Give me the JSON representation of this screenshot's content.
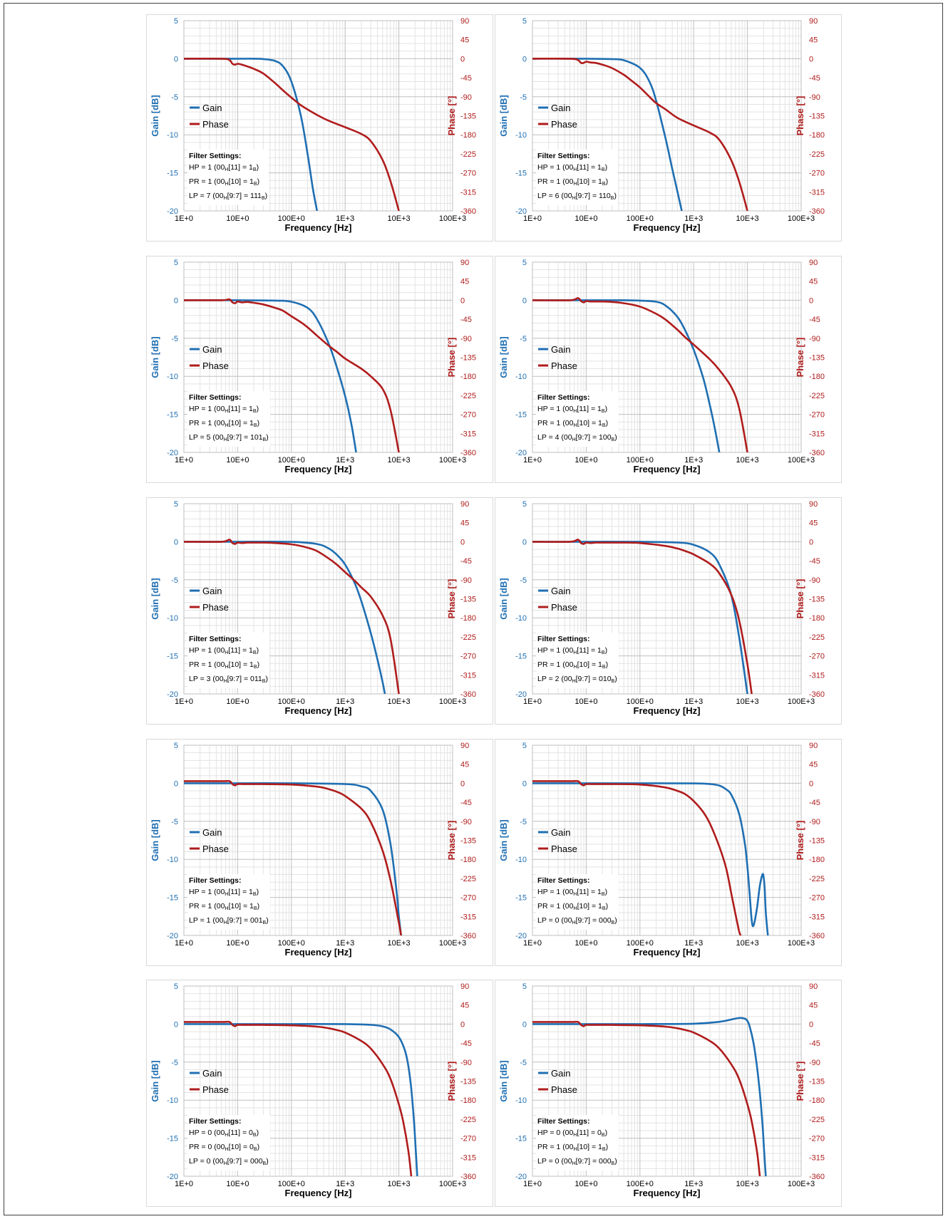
{
  "colors": {
    "gain": "#1f6fb2",
    "phase": "#b01c1c",
    "grid_major": "#bfbfbf",
    "grid_minor": "#e3e3e3"
  },
  "axes": {
    "xlabel": "Frequency [Hz]",
    "ylabel": "Gain [dB]",
    "y2label": "Phase [°]",
    "x_scale": "log",
    "xlim": [
      1,
      100000
    ],
    "x_ticks": [
      {
        "value": 1,
        "label": "1E+0"
      },
      {
        "value": 10,
        "label": "10E+0"
      },
      {
        "value": 100,
        "label": "100E+0"
      },
      {
        "value": 1000,
        "label": "1E+3"
      },
      {
        "value": 10000,
        "label": "10E+3"
      },
      {
        "value": 100000,
        "label": "100E+3"
      }
    ],
    "ylim": [
      -20,
      5
    ],
    "y_ticks": [
      "5",
      "0",
      "-5",
      "-10",
      "-15",
      "-20"
    ],
    "y2lim": [
      -360,
      90
    ],
    "y2_ticks": [
      "90",
      "45",
      "0",
      "-45",
      "-90",
      "-135",
      "-180",
      "-225",
      "-270",
      "-315",
      "-360"
    ],
    "grid": true
  },
  "legend": {
    "gain": "Gain",
    "phase": "Phase",
    "placement": "left"
  },
  "filter_settings_title": "Filter Settings:",
  "chart_data": [
    {
      "type": "line",
      "hp": "HP = 1 (00",
      "hp_mid": "[11] = 1",
      "hp_end": ")",
      "pr": "PR = 1 (00",
      "pr_mid": "[10] = 1",
      "pr_end": ")",
      "lp": "LP = 7 (00",
      "lp_mid": "[9:7] = 111",
      "lp_end": ")",
      "series": [
        {
          "name": "Gain",
          "axis": "left",
          "x": [
            1,
            10,
            20,
            30,
            50,
            70,
            100,
            150,
            200,
            250,
            300
          ],
          "y": [
            0,
            0,
            0,
            -0.05,
            -0.3,
            -1.0,
            -3.0,
            -7.5,
            -12.5,
            -17,
            -20
          ]
        },
        {
          "name": "Phase",
          "axis": "right",
          "x": [
            1,
            5,
            7,
            8,
            9,
            10,
            12,
            15,
            20,
            30,
            50,
            70,
            100,
            150,
            200,
            300,
            500,
            1000,
            2000,
            3000,
            5000,
            7000,
            10000
          ],
          "y": [
            0,
            0,
            -3,
            -12,
            -14,
            -12,
            -14,
            -18,
            -24,
            -35,
            -58,
            -75,
            -92,
            -110,
            -120,
            -133,
            -147,
            -162,
            -178,
            -195,
            -240,
            -290,
            -360
          ]
        }
      ]
    },
    {
      "type": "line",
      "hp": "HP = 1 (00",
      "hp_mid": "[11] = 1",
      "hp_end": ")",
      "pr": "PR = 1 (00",
      "pr_mid": "[10] = 1",
      "pr_end": ")",
      "lp": "LP = 6 (00",
      "lp_mid": "[9:7] = 110",
      "lp_end": ")",
      "series": [
        {
          "name": "Gain",
          "axis": "left",
          "x": [
            1,
            10,
            30,
            50,
            100,
            150,
            200,
            300,
            400,
            500,
            600
          ],
          "y": [
            0,
            0,
            -0.05,
            -0.2,
            -1.2,
            -3.0,
            -5.5,
            -10.5,
            -14.5,
            -17.5,
            -20
          ]
        },
        {
          "name": "Phase",
          "axis": "right",
          "x": [
            1,
            5,
            7,
            8,
            9,
            10,
            12,
            15,
            20,
            30,
            50,
            70,
            100,
            150,
            200,
            300,
            500,
            1000,
            2000,
            3000,
            5000,
            7000,
            10000
          ],
          "y": [
            0,
            0,
            -3,
            -10,
            -10,
            -7,
            -9,
            -10,
            -14,
            -22,
            -38,
            -52,
            -68,
            -90,
            -105,
            -120,
            -140,
            -158,
            -175,
            -192,
            -240,
            -290,
            -360
          ]
        }
      ]
    },
    {
      "type": "line",
      "hp": "HP = 1 (00",
      "hp_mid": "[11] = 1",
      "hp_end": ")",
      "pr": "PR = 1 (00",
      "pr_mid": "[10] = 1",
      "pr_end": ")",
      "lp": "LP = 5 (00",
      "lp_mid": "[9:7] = 101",
      "lp_end": ")",
      "series": [
        {
          "name": "Gain",
          "axis": "left",
          "x": [
            1,
            10,
            50,
            100,
            200,
            300,
            500,
            700,
            1000,
            1300,
            1600
          ],
          "y": [
            0,
            0,
            -0.05,
            -0.2,
            -1.0,
            -2.5,
            -5.8,
            -8.8,
            -12.6,
            -16.2,
            -20
          ]
        },
        {
          "name": "Phase",
          "axis": "right",
          "x": [
            1,
            5,
            7,
            8,
            9,
            10,
            12,
            15,
            20,
            30,
            50,
            70,
            100,
            150,
            200,
            300,
            500,
            700,
            1000,
            2000,
            3000,
            5000,
            7000,
            10000
          ],
          "y": [
            0,
            0,
            2,
            -5,
            -7,
            -3,
            -5,
            -4,
            -6,
            -10,
            -18,
            -25,
            -38,
            -52,
            -64,
            -84,
            -108,
            -122,
            -138,
            -162,
            -180,
            -210,
            -260,
            -360
          ]
        }
      ]
    },
    {
      "type": "line",
      "hp": "HP = 1 (00",
      "hp_mid": "[11] = 1",
      "hp_end": ")",
      "pr": "PR = 1 (00",
      "pr_mid": "[10] = 1",
      "pr_end": ")",
      "lp": "LP = 4 (00",
      "lp_mid": "[9:7] = 100",
      "lp_end": ")",
      "series": [
        {
          "name": "Gain",
          "axis": "left",
          "x": [
            1,
            10,
            50,
            100,
            200,
            300,
            500,
            700,
            1000,
            1500,
            2000,
            2500,
            3000
          ],
          "y": [
            0,
            0,
            0,
            -0.05,
            -0.2,
            -0.7,
            -2.2,
            -4.0,
            -6.5,
            -10.2,
            -13.8,
            -17.0,
            -20
          ]
        },
        {
          "name": "Phase",
          "axis": "right",
          "x": [
            1,
            5,
            7,
            8,
            9,
            10,
            12,
            15,
            20,
            30,
            50,
            100,
            200,
            300,
            500,
            700,
            1000,
            2000,
            3000,
            5000,
            7000,
            10000
          ],
          "y": [
            0,
            0,
            5,
            -2,
            -5,
            -2,
            -3,
            -3,
            -3,
            -4,
            -7,
            -15,
            -32,
            -46,
            -70,
            -88,
            -105,
            -140,
            -165,
            -205,
            -255,
            -360
          ]
        }
      ]
    },
    {
      "type": "line",
      "hp": "HP = 1 (00",
      "hp_mid": "[11] = 1",
      "hp_end": ")",
      "pr": "PR = 1 (00",
      "pr_mid": "[10] = 1",
      "pr_end": ")",
      "lp": "LP = 3 (00",
      "lp_mid": "[9:7] = 011",
      "lp_end": ")",
      "series": [
        {
          "name": "Gain",
          "axis": "left",
          "x": [
            1,
            10,
            100,
            300,
            500,
            700,
            1000,
            1500,
            2000,
            3000,
            4000,
            5000,
            5500
          ],
          "y": [
            0,
            0,
            -0.02,
            -0.3,
            -0.9,
            -1.7,
            -3.0,
            -5.4,
            -7.8,
            -12.0,
            -15.5,
            -18.5,
            -20
          ]
        },
        {
          "name": "Phase",
          "axis": "right",
          "x": [
            1,
            5,
            7,
            8,
            9,
            10,
            12,
            15,
            20,
            30,
            50,
            100,
            200,
            300,
            500,
            700,
            1000,
            1500,
            2000,
            3000,
            5000,
            7000,
            10000
          ],
          "y": [
            0,
            0,
            5,
            -3,
            -5,
            -2,
            -3,
            -2,
            -2,
            -2,
            -3,
            -6,
            -14,
            -22,
            -40,
            -54,
            -72,
            -92,
            -108,
            -130,
            -175,
            -230,
            -360
          ]
        }
      ]
    },
    {
      "type": "line",
      "hp": "HP = 1 (00",
      "hp_mid": "[11] = 1",
      "hp_end": ")",
      "pr": "PR = 1 (00",
      "pr_mid": "[10] = 1",
      "pr_end": ")",
      "lp": "LP = 2 (00",
      "lp_mid": "[9:7] = 010",
      "lp_end": ")",
      "series": [
        {
          "name": "Gain",
          "axis": "left",
          "x": [
            1,
            10,
            100,
            500,
            1000,
            2000,
            3000,
            5000,
            7000,
            8500,
            10000
          ],
          "y": [
            0,
            0,
            0,
            -0.1,
            -0.4,
            -1.4,
            -3.0,
            -7.0,
            -12.5,
            -16.5,
            -20
          ]
        },
        {
          "name": "Phase",
          "axis": "right",
          "x": [
            1,
            5,
            7,
            8,
            9,
            10,
            12,
            15,
            20,
            30,
            50,
            100,
            300,
            500,
            700,
            1000,
            2000,
            3000,
            5000,
            7000,
            10000,
            12000
          ],
          "y": [
            0,
            0,
            5,
            -3,
            -5,
            -2,
            -3,
            -2,
            -2,
            -2,
            -2,
            -3,
            -10,
            -16,
            -22,
            -30,
            -52,
            -75,
            -125,
            -185,
            -290,
            -360
          ]
        }
      ]
    },
    {
      "type": "line",
      "hp": "HP = 1 (00",
      "hp_mid": "[11] = 1",
      "hp_end": ")",
      "pr": "PR = 1 (00",
      "pr_mid": "[10] = 1",
      "pr_end": ")",
      "lp": "LP = 1 (00",
      "lp_mid": "[9:7] = 001",
      "lp_end": ")",
      "series": [
        {
          "name": "Gain",
          "axis": "left",
          "x": [
            1,
            10,
            100,
            1000,
            2000,
            3000,
            5000,
            7000,
            9000,
            10000,
            11000
          ],
          "y": [
            0,
            0,
            0,
            -0.1,
            -0.4,
            -1.0,
            -3.5,
            -8.0,
            -14.0,
            -17.5,
            -20
          ]
        },
        {
          "name": "Phase",
          "axis": "right",
          "x": [
            1,
            5,
            7,
            8,
            9,
            10,
            15,
            30,
            100,
            300,
            500,
            700,
            1000,
            2000,
            3000,
            5000,
            7000,
            10000,
            11000
          ],
          "y": [
            5,
            5,
            5,
            -2,
            -5,
            -2,
            -2,
            -2,
            -3,
            -8,
            -14,
            -20,
            -30,
            -60,
            -92,
            -160,
            -230,
            -330,
            -360
          ]
        }
      ]
    },
    {
      "type": "line",
      "hp": "HP = 1 (00",
      "hp_mid": "[11] = 1",
      "hp_end": ")",
      "pr": "PR = 1 (00",
      "pr_mid": "[10] = 1",
      "pr_end": ")",
      "lp": "LP = 0 (00",
      "lp_mid": "[9:7] = 000",
      "lp_end": ")",
      "series": [
        {
          "name": "Gain",
          "axis": "left",
          "x": [
            1,
            10,
            100,
            1000,
            2000,
            3000,
            4000,
            5000,
            7000,
            9000,
            10000,
            11000,
            12000,
            13000,
            15000,
            17000,
            19000,
            20000,
            21000,
            22000,
            24000
          ],
          "y": [
            0,
            0,
            0,
            -0.02,
            -0.1,
            -0.3,
            -0.8,
            -1.5,
            -4.0,
            -8.0,
            -11.0,
            -14.5,
            -18.0,
            -18.7,
            -16.5,
            -13.5,
            -12.0,
            -12.3,
            -14.0,
            -17.0,
            -20
          ]
        },
        {
          "name": "Phase",
          "axis": "right",
          "x": [
            1,
            5,
            7,
            8,
            9,
            10,
            15,
            30,
            100,
            300,
            500,
            700,
            1000,
            1500,
            2000,
            3000,
            4000,
            5000,
            6000,
            7000,
            7500
          ],
          "y": [
            5,
            5,
            5,
            -2,
            -5,
            -2,
            -2,
            -2,
            -3,
            -10,
            -18,
            -26,
            -42,
            -68,
            -95,
            -150,
            -200,
            -260,
            -310,
            -350,
            -360
          ]
        }
      ]
    },
    {
      "type": "line",
      "hp": "HP = 0 (00",
      "hp_mid": "[11] = 0",
      "hp_end": ")",
      "pr": "PR = 0 (00",
      "pr_mid": "[10] = 0",
      "pr_end": ")",
      "lp": "LP = 0 (00",
      "lp_mid": "[9:7] = 000",
      "lp_end": ")",
      "series": [
        {
          "name": "Gain",
          "axis": "left",
          "x": [
            1,
            10,
            100,
            1000,
            3000,
            5000,
            7000,
            10000,
            13000,
            15000,
            17000,
            19000,
            20000,
            21000,
            22000
          ],
          "y": [
            0,
            0,
            0,
            0,
            -0.1,
            -0.3,
            -0.7,
            -1.7,
            -3.5,
            -5.5,
            -8.5,
            -12.5,
            -15.0,
            -17.5,
            -20
          ]
        },
        {
          "name": "Phase",
          "axis": "right",
          "x": [
            1,
            5,
            7,
            8,
            9,
            10,
            15,
            30,
            100,
            300,
            500,
            700,
            1000,
            2000,
            3000,
            5000,
            7000,
            10000,
            12000,
            15000,
            17000
          ],
          "y": [
            5,
            5,
            5,
            -2,
            -5,
            -2,
            -2,
            -2,
            -3,
            -6,
            -10,
            -14,
            -20,
            -40,
            -58,
            -95,
            -130,
            -190,
            -230,
            -300,
            -360
          ]
        }
      ]
    },
    {
      "type": "line",
      "hp": "HP = 0 (00",
      "hp_mid": "[11] = 0",
      "hp_end": ")",
      "pr": "PR = 1 (00",
      "pr_mid": "[10] = 1",
      "pr_end": ")",
      "lp": "LP = 0 (00",
      "lp_mid": "[9:7] = 000",
      "lp_end": ")",
      "series": [
        {
          "name": "Gain",
          "axis": "left",
          "x": [
            1,
            10,
            100,
            1000,
            3000,
            5000,
            7000,
            9000,
            10000,
            11000,
            13000,
            15000,
            17000,
            19000,
            20000,
            21000,
            22000
          ],
          "y": [
            0,
            0,
            0,
            0.05,
            0.3,
            0.6,
            0.8,
            0.7,
            0.4,
            -0.3,
            -2.5,
            -5.5,
            -9.0,
            -13.0,
            -15.5,
            -18.0,
            -20
          ]
        },
        {
          "name": "Phase",
          "axis": "right",
          "x": [
            1,
            5,
            7,
            8,
            9,
            10,
            15,
            30,
            100,
            300,
            500,
            700,
            1000,
            2000,
            3000,
            5000,
            7000,
            10000,
            12000,
            15000,
            17000
          ],
          "y": [
            5,
            5,
            5,
            -2,
            -5,
            -2,
            -2,
            -2,
            -3,
            -6,
            -10,
            -14,
            -20,
            -40,
            -58,
            -95,
            -130,
            -190,
            -230,
            -300,
            -360
          ]
        }
      ]
    }
  ]
}
